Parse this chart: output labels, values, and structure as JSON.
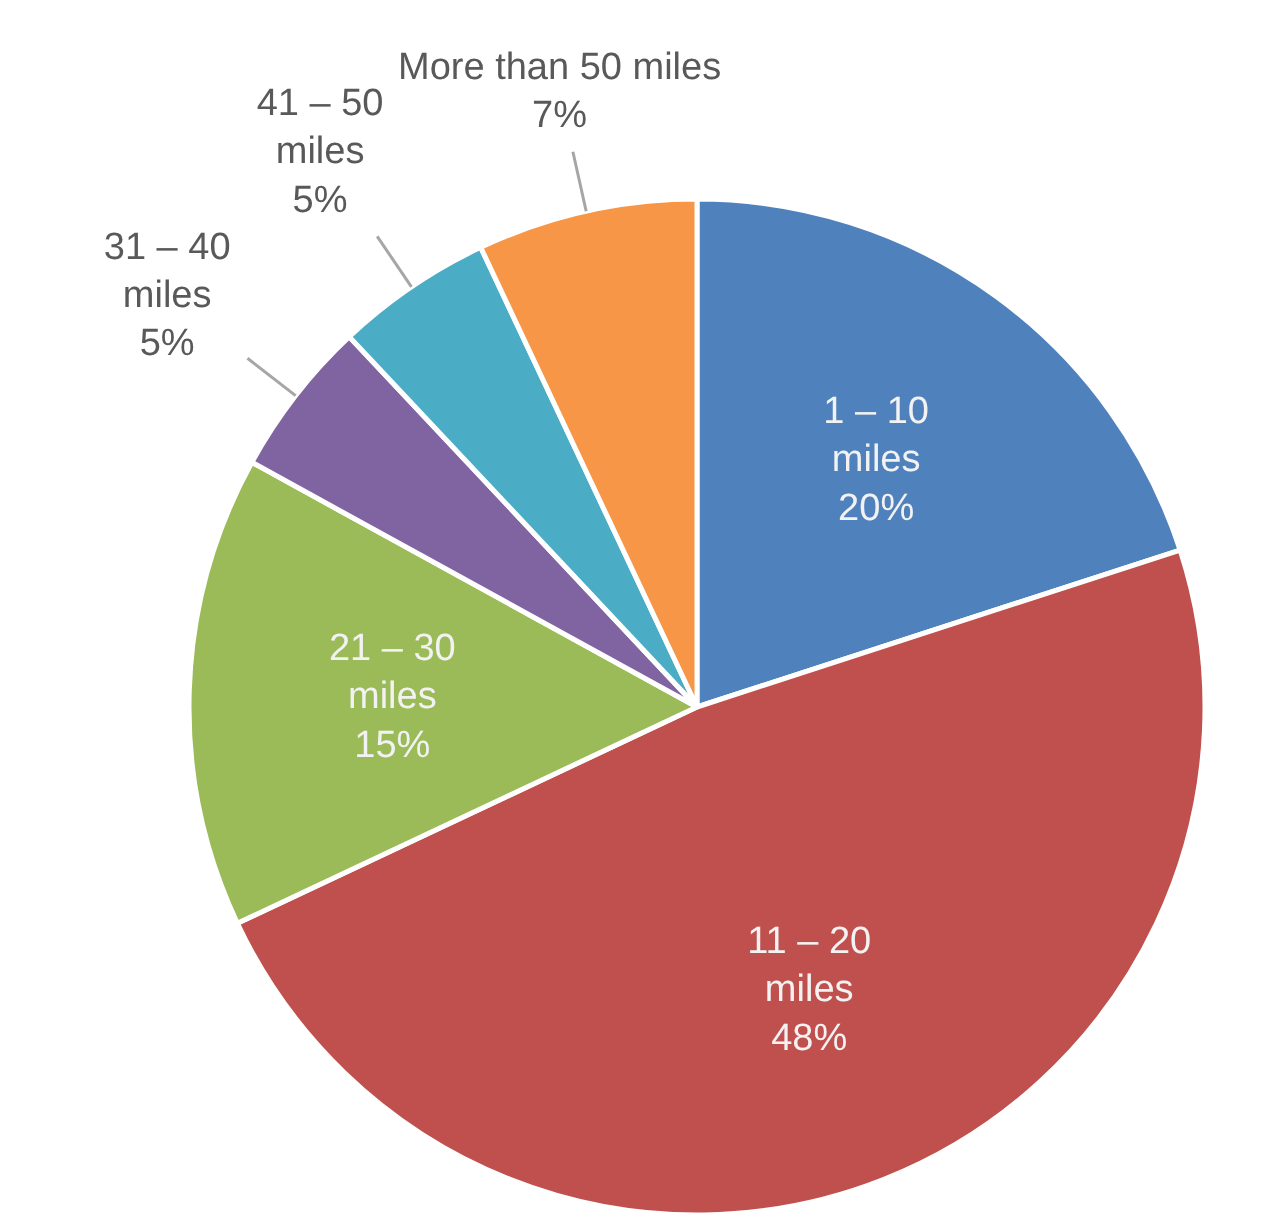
{
  "chart_data": {
    "type": "pie",
    "categories": [
      "1 – 10\nmiles",
      "11 – 20\nmiles",
      "21 – 30\nmiles",
      "31 – 40\nmiles",
      "41 – 50\nmiles",
      "More than 50 miles"
    ],
    "values": [
      20,
      48,
      15,
      5,
      5,
      7
    ],
    "value_labels": [
      "20%",
      "48%",
      "15%",
      "5%",
      "5%",
      "7%"
    ],
    "colors": [
      "#4f81bd",
      "#c0504d",
      "#9bbb59",
      "#8064a2",
      "#4bacc6",
      "#f79646"
    ],
    "legend": false
  }
}
